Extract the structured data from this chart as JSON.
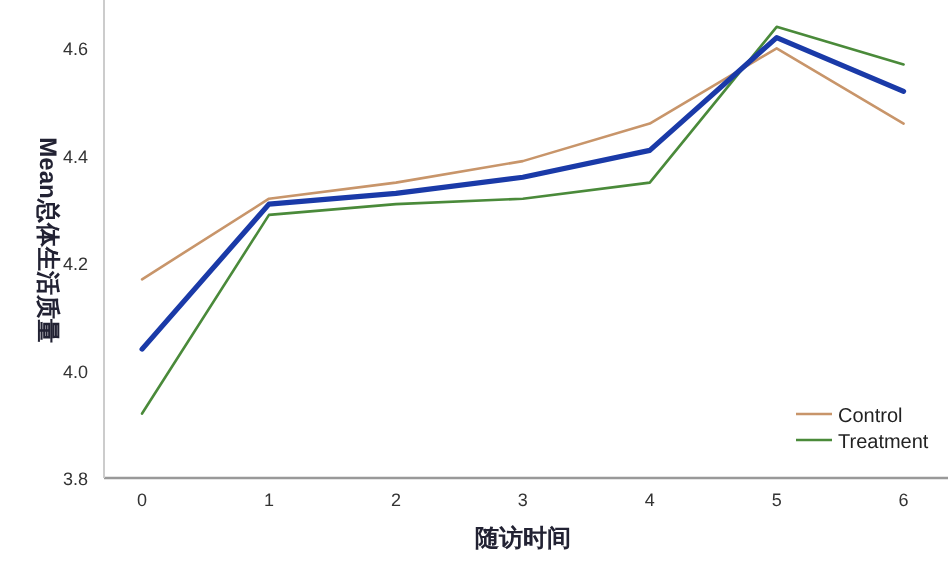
{
  "chart_data": {
    "type": "line",
    "xlabel": "随访时间",
    "ylabel": "Mean总体生活质量",
    "x": [
      0,
      1,
      2,
      3,
      4,
      5,
      6
    ],
    "series": [
      {
        "name": "Control",
        "color": "#c8956a",
        "values": [
          4.17,
          4.32,
          4.35,
          4.39,
          4.46,
          4.6,
          4.46
        ]
      },
      {
        "name": "Treatment",
        "color": "#4a8a3a",
        "values": [
          3.92,
          4.29,
          4.31,
          4.32,
          4.35,
          4.64,
          4.57
        ]
      },
      {
        "color": "#1a3aa8",
        "values": [
          4.04,
          4.31,
          4.33,
          4.36,
          4.41,
          4.62,
          4.52
        ]
      }
    ],
    "xlim": [
      -0.3,
      6.35
    ],
    "xticks": [
      0,
      1,
      2,
      3,
      4,
      5,
      6
    ],
    "ylim": [
      3.8,
      4.69
    ],
    "yticks": [
      3.8,
      {
        "value": 4.0,
        "label": "4.0"
      },
      4.2,
      4.4,
      4.6
    ],
    "legend": "bottom right",
    "grid": false
  }
}
